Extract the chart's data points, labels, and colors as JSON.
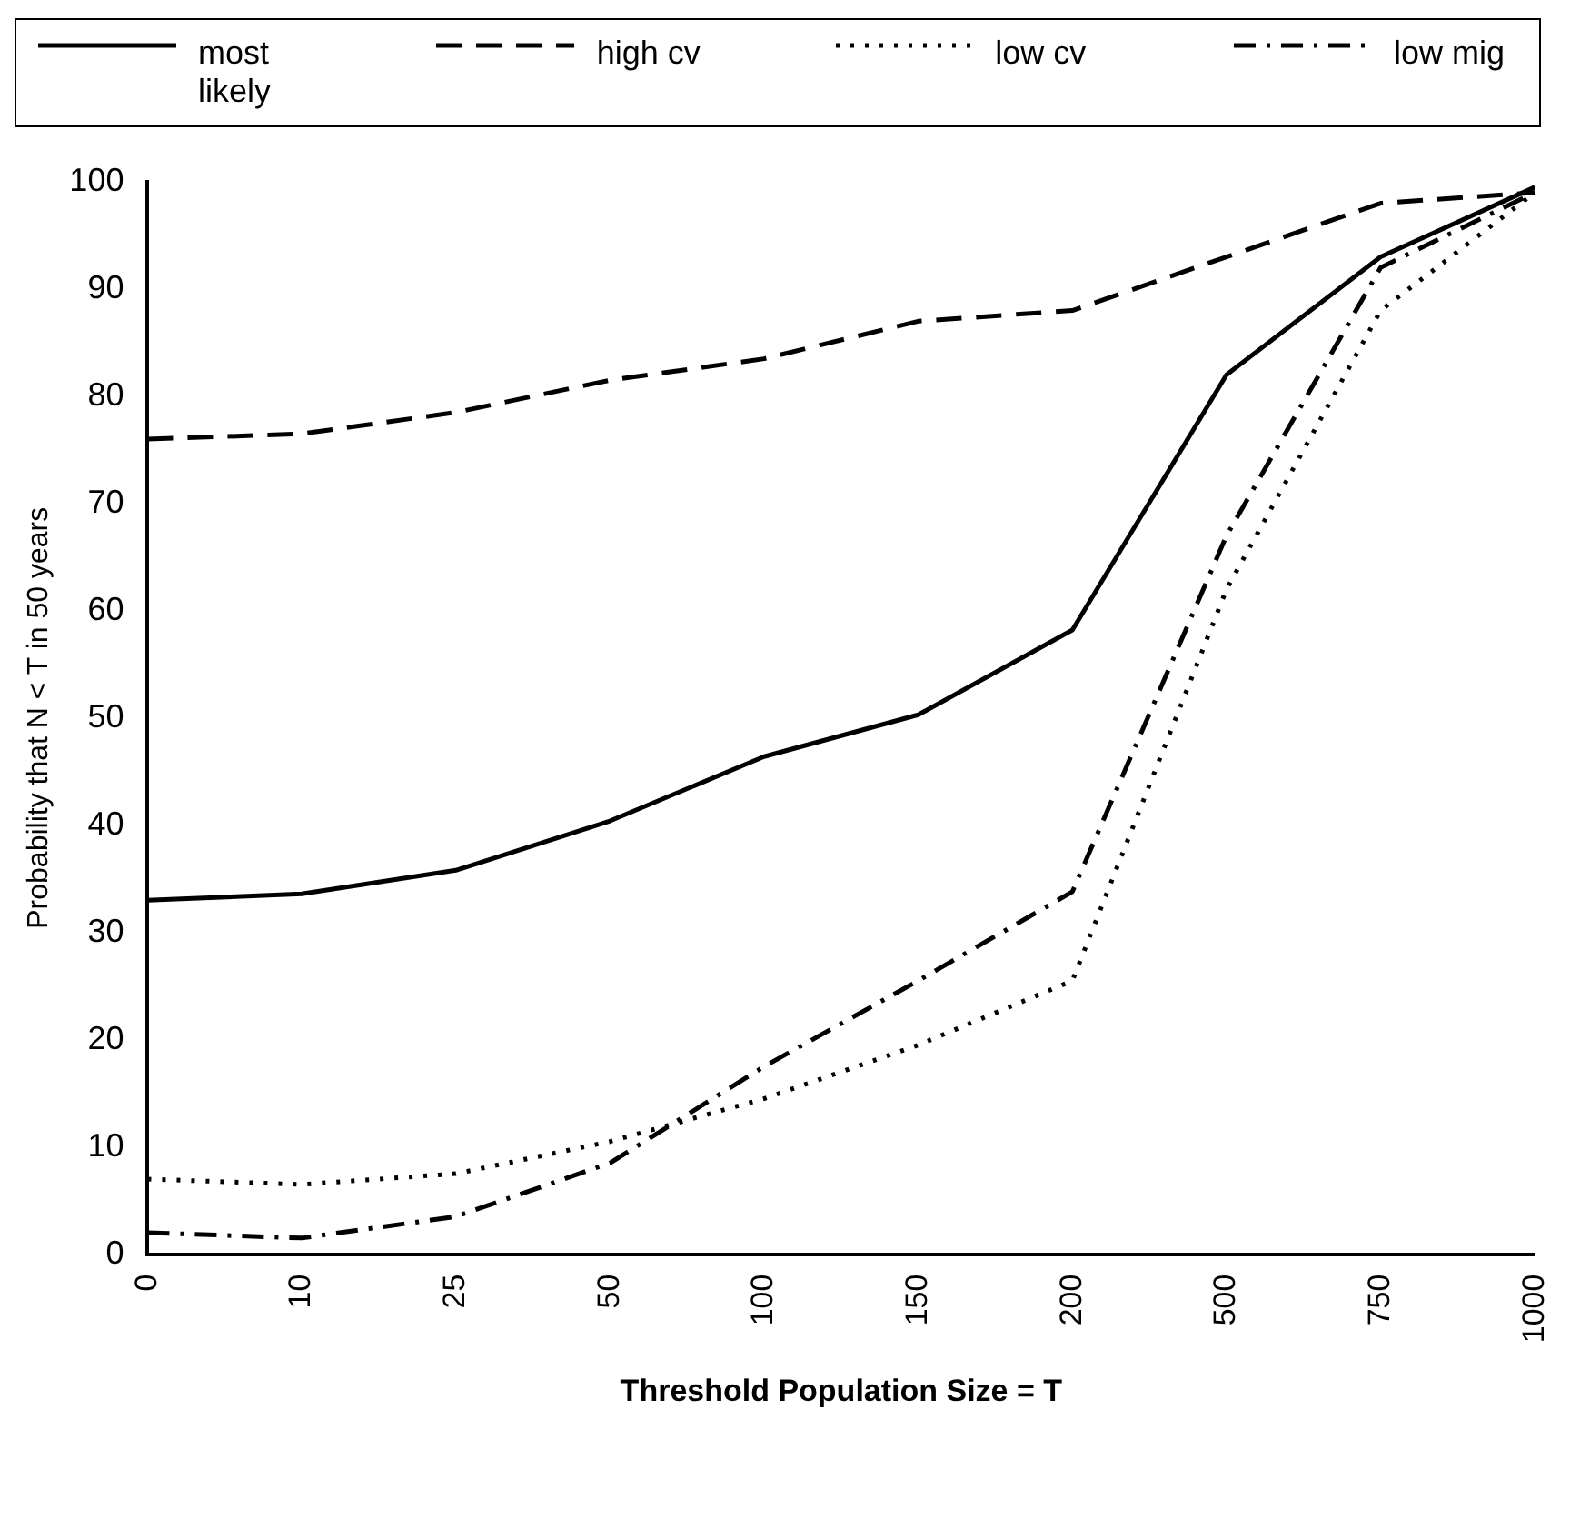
{
  "chart_data": {
    "type": "line",
    "xlabel": "Threshold Population Size = T",
    "ylabel": "Probability that N < T in 50 years",
    "categories": [
      "0",
      "10",
      "25",
      "50",
      "100",
      "150",
      "200",
      "500",
      "750",
      "1000"
    ],
    "ylim": [
      0,
      100
    ],
    "yticks": [
      0,
      10,
      20,
      30,
      40,
      50,
      60,
      70,
      80,
      90,
      100
    ],
    "grid": false,
    "legend": "top",
    "marker": "none",
    "series": [
      {
        "name": "most likely",
        "color": "#000000",
        "line_style": "solid",
        "values": [
          33,
          33.6,
          35.8,
          40.4,
          46.4,
          50.3,
          58.2,
          82,
          93,
          99.5
        ]
      },
      {
        "name": "high cv",
        "color": "#000000",
        "line_style": "dashed",
        "values": [
          76,
          76.5,
          78.5,
          81.5,
          83.5,
          87,
          88,
          93,
          98,
          99
        ]
      },
      {
        "name": "low cv",
        "color": "#000000",
        "line_style": "dotted",
        "values": [
          7,
          6.5,
          7.5,
          10.5,
          14.5,
          19.5,
          25.5,
          62,
          88,
          99
        ]
      },
      {
        "name": "low mig",
        "color": "#000000",
        "line_style": "dashdot",
        "values": [
          2,
          1.5,
          3.5,
          8.5,
          17.5,
          25.5,
          33.8,
          67,
          92,
          99
        ]
      }
    ]
  }
}
